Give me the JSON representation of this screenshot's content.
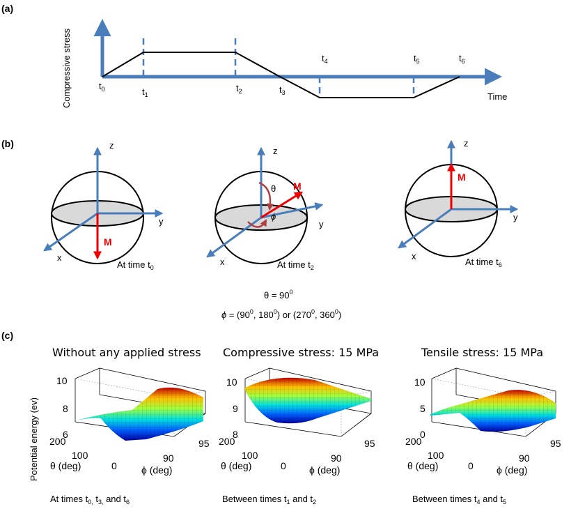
{
  "panel_a": {
    "tag": "(a)",
    "ylabel": "Compressive stress",
    "xlabel": "Time",
    "times": [
      {
        "base": "t",
        "sub": "0"
      },
      {
        "base": "t",
        "sub": "1"
      },
      {
        "base": "t",
        "sub": "2"
      },
      {
        "base": "t",
        "sub": "3"
      },
      {
        "base": "t",
        "sub": "4"
      },
      {
        "base": "t",
        "sub": "5"
      },
      {
        "base": "t",
        "sub": "6"
      }
    ],
    "stress_profile": {
      "t": [
        0,
        1,
        2,
        3,
        4,
        5,
        6
      ],
      "stress": [
        0,
        1,
        1,
        0,
        -1,
        -1,
        0
      ]
    }
  },
  "panel_b": {
    "tag": "(b)",
    "spheres": [
      {
        "caption_base": "At time t",
        "caption_sub": "0",
        "moment_label": "M",
        "moment": "-z"
      },
      {
        "caption_base": "At time t",
        "caption_sub": "2",
        "moment_label": "M",
        "moment": "in-plane"
      },
      {
        "caption_base": "At time t",
        "caption_sub": "6",
        "moment_label": "M",
        "moment": "+z"
      }
    ],
    "axis_labels": {
      "x": "x",
      "y": "y",
      "z": "z"
    },
    "theta_symbol": "θ",
    "phi_symbol": "ϕ",
    "theta_line": {
      "prefix": "θ = 90",
      "sup": "0"
    },
    "phi_line": {
      "symbol": "ϕ",
      "parts": [
        " = (90",
        "0",
        ", 180",
        "0",
        ") or (270",
        "0",
        ", 360",
        "0",
        ")"
      ]
    }
  },
  "panel_c": {
    "tag": "(c)",
    "zlabel": "Potential energy (ev)",
    "theta_axis_label": "θ (deg)",
    "phi_axis_label": "ϕ (deg)",
    "plots": [
      {
        "title": "Without any applied stress",
        "z_ticks": [
          "10",
          "8",
          "6"
        ],
        "theta_ticks": [
          "200",
          "100",
          "0"
        ],
        "phi_ticks": [
          "90",
          "95"
        ],
        "caption": {
          "text": "At times t",
          "subs": [
            "0",
            ", t",
            "3",
            ", and t",
            "6"
          ]
        },
        "caption_parts": [
          "At times t",
          "0,",
          " t",
          "3,",
          " and t",
          "6"
        ],
        "surface": "valley"
      },
      {
        "title": "Compressive stress: 15 MPa",
        "z_ticks": [
          "10",
          "9",
          "8"
        ],
        "theta_ticks": [
          "200",
          "100",
          "0"
        ],
        "phi_ticks": [
          "90",
          "95"
        ],
        "caption_parts": [
          "Between times t",
          "1",
          " and t",
          "2"
        ],
        "surface": "bowl"
      },
      {
        "title": "Tensile stress: 15 MPa",
        "z_ticks": [
          "10",
          "5",
          "0"
        ],
        "theta_ticks": [
          "200",
          "100",
          "0"
        ],
        "phi_ticks": [
          "90",
          "95"
        ],
        "caption_parts": [
          "Between times t",
          "4",
          " and t",
          "5"
        ],
        "surface": "ridge"
      }
    ]
  },
  "colors": {
    "axis_blue": "#4a7ebb",
    "curve": "#000000",
    "moment_red": "#ee0000",
    "disk_fill": "#d9d9d9",
    "arc_red": "#b04040"
  }
}
